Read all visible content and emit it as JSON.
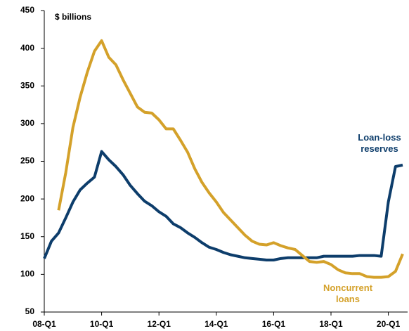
{
  "chart_data": {
    "type": "line",
    "categories": [
      "08-Q1",
      null,
      null,
      null,
      null,
      null,
      null,
      null,
      "10-Q1",
      null,
      null,
      null,
      null,
      null,
      null,
      null,
      "12-Q1",
      null,
      null,
      null,
      null,
      null,
      null,
      null,
      "14-Q1",
      null,
      null,
      null,
      null,
      null,
      null,
      null,
      "16-Q1",
      null,
      null,
      null,
      null,
      null,
      null,
      null,
      "18-Q1",
      null,
      null,
      null,
      null,
      null,
      null,
      null,
      "20-Q1",
      null,
      null
    ],
    "series": [
      {
        "name": "Loan-loss reserves",
        "color": "#0d3d6b",
        "values": [
          121,
          144,
          155,
          175,
          196,
          212,
          221,
          229,
          263,
          252,
          243,
          232,
          218,
          207,
          197,
          191,
          183,
          177,
          167,
          162,
          155,
          149,
          142,
          136,
          133,
          129,
          126,
          124,
          122,
          121,
          120,
          119,
          119,
          121,
          122,
          122,
          122,
          122,
          122,
          124,
          124,
          124,
          124,
          124,
          125,
          125,
          125,
          124,
          196,
          243,
          245
        ]
      },
      {
        "name": "Noncurrent loans",
        "color": "#d4a12a",
        "values": [
          null,
          null,
          185,
          235,
          295,
          335,
          368,
          396,
          410,
          388,
          378,
          358,
          340,
          322,
          315,
          314,
          305,
          293,
          293,
          278,
          262,
          240,
          222,
          208,
          196,
          182,
          172,
          162,
          152,
          144,
          140,
          139,
          142,
          138,
          135,
          133,
          125,
          117,
          116,
          117,
          113,
          106,
          102,
          101,
          101,
          97,
          96,
          96,
          97,
          104,
          127
        ]
      }
    ],
    "annotations": [
      "$ billions"
    ],
    "ylim": [
      50,
      450
    ],
    "yticks": [
      50,
      100,
      150,
      200,
      250,
      300,
      350,
      400,
      450
    ],
    "grid": false
  }
}
